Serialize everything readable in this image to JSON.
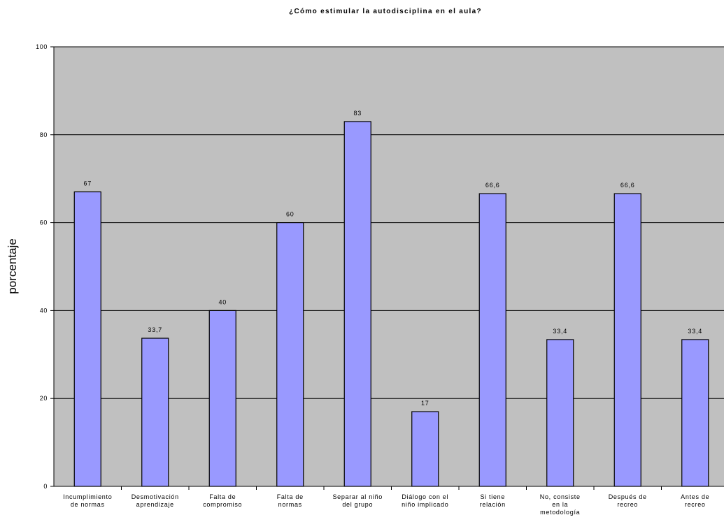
{
  "chart_data": {
    "type": "bar",
    "title": "¿Cómo estimular la autodisciplina en el aula?",
    "xlabel": "",
    "ylabel": "porcentaje",
    "ylim": [
      0,
      100
    ],
    "yticks": [
      0,
      20,
      40,
      60,
      80,
      100
    ],
    "grid": true,
    "legend": "none",
    "categories": [
      "Incumplimiento de normas",
      "Desmotivación aprendizaje",
      "Falta de compromiso",
      "Falta de normas",
      "Separar al niño del grupo",
      "Diálogo con el niño implicado",
      "Si tiene relación",
      "No, consiste en la metodología",
      "Después de recreo",
      "Antes de recreo"
    ],
    "category_lines": [
      [
        "Incumplimiento",
        "de normas"
      ],
      [
        "Desmotivación",
        "aprendizaje"
      ],
      [
        "Falta de",
        "compromiso"
      ],
      [
        "Falta de",
        "normas"
      ],
      [
        "Separar al niño",
        "del grupo"
      ],
      [
        "Diálogo con el",
        "niño implicado"
      ],
      [
        "Si tiene",
        "relación"
      ],
      [
        "No, consiste",
        "en la",
        "metodología"
      ],
      [
        "Después de",
        "recreo"
      ],
      [
        "Antes de",
        "recreo"
      ]
    ],
    "values": [
      67,
      33.7,
      40,
      60,
      83,
      17,
      66.6,
      33.4,
      66.6,
      33.4
    ],
    "value_labels": [
      "67",
      "33,7",
      "40",
      "60",
      "83",
      "17",
      "66,6",
      "33,4",
      "66,6",
      "33,4"
    ],
    "colors": {
      "bar_fill": "#9999ff",
      "bar_stroke": "#000000",
      "plot_background": "#c0c0c0",
      "gridline": "#000000"
    }
  }
}
